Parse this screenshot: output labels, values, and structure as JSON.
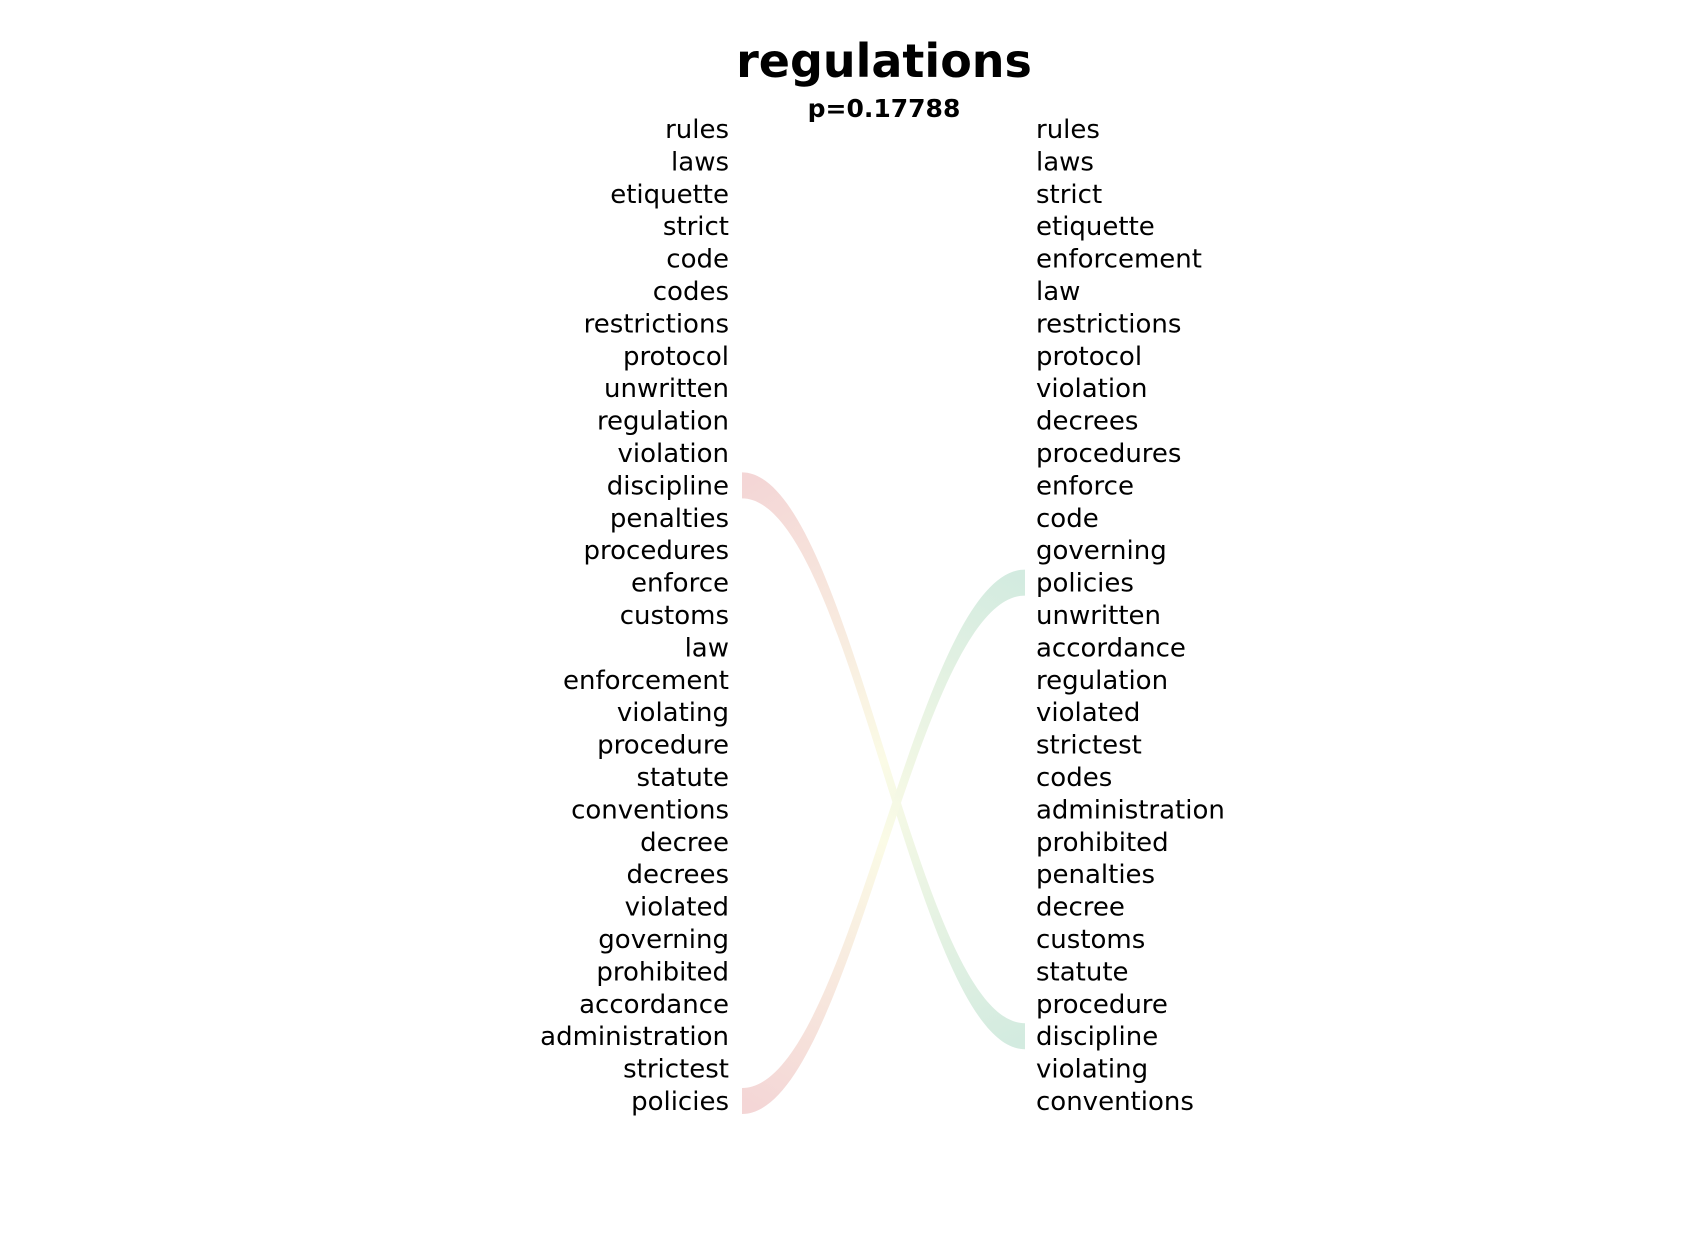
{
  "chart_data": {
    "type": "bump",
    "title": "regulations",
    "subtitle": "p=0.17788",
    "left_words": [
      "rules",
      "laws",
      "etiquette",
      "strict",
      "code",
      "codes",
      "restrictions",
      "protocol",
      "unwritten",
      "regulation",
      "violation",
      "discipline",
      "penalties",
      "procedures",
      "enforce",
      "customs",
      "law",
      "enforcement",
      "violating",
      "procedure",
      "statute",
      "conventions",
      "decree",
      "decrees",
      "violated",
      "governing",
      "prohibited",
      "accordance",
      "administration",
      "strictest",
      "policies"
    ],
    "right_words": [
      "rules",
      "laws",
      "strict",
      "etiquette",
      "enforcement",
      "law",
      "restrictions",
      "protocol",
      "violation",
      "decrees",
      "procedures",
      "enforce",
      "code",
      "governing",
      "policies",
      "unwritten",
      "accordance",
      "regulation",
      "violated",
      "strictest",
      "codes",
      "administration",
      "prohibited",
      "penalties",
      "decree",
      "customs",
      "statute",
      "procedure",
      "discipline",
      "violating",
      "conventions"
    ],
    "highlighted_links": [
      {
        "word": "discipline",
        "from_rank": 12,
        "to_rank": 29,
        "start_color": "#f4d6d6",
        "mid_color": "#fbfbe6",
        "end_color": "#d3ebe0"
      },
      {
        "word": "policies",
        "from_rank": 31,
        "to_rank": 15,
        "start_color": "#f4d6d6",
        "mid_color": "#fbfbe6",
        "end_color": "#d3ebe0"
      }
    ]
  }
}
